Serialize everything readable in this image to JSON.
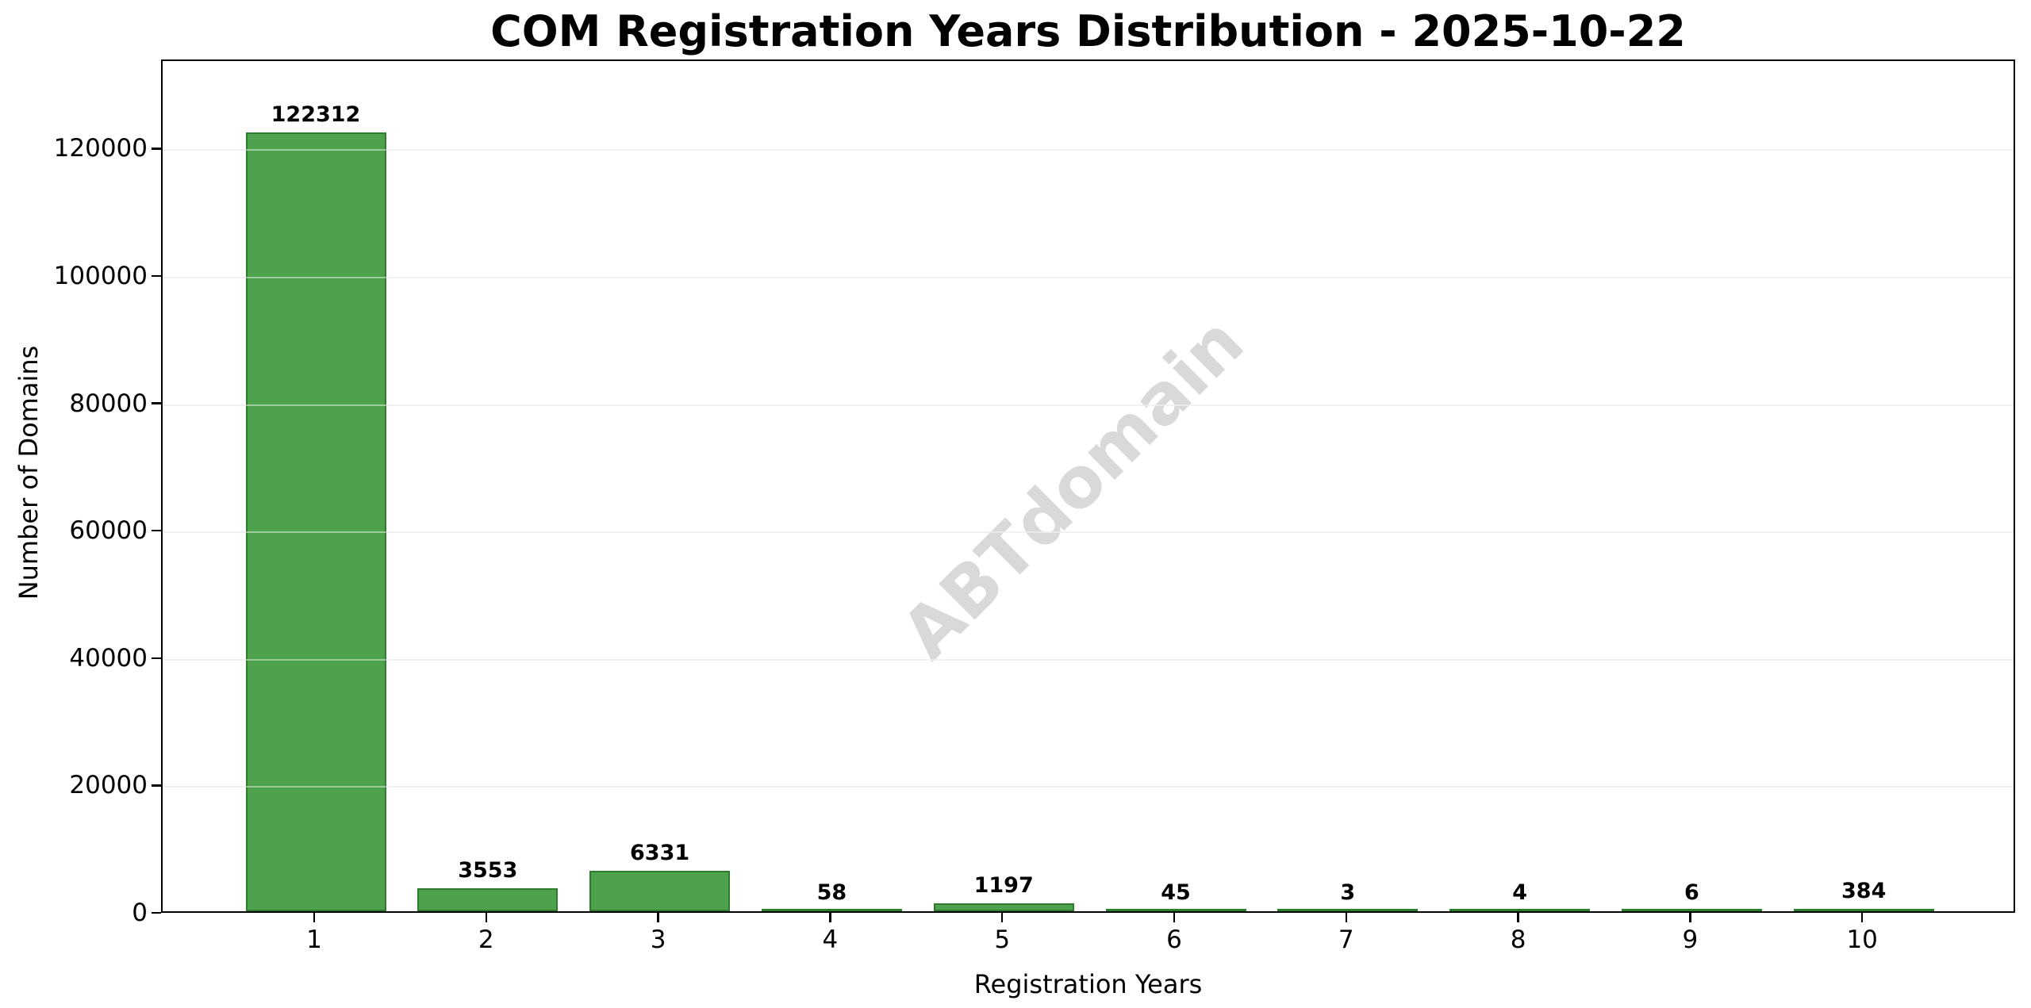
{
  "chart_data": {
    "type": "bar",
    "title": "COM Registration Years Distribution - 2025-10-22",
    "xlabel": "Registration Years",
    "ylabel": "Number of Domains",
    "categories": [
      "1",
      "2",
      "3",
      "4",
      "5",
      "6",
      "7",
      "8",
      "9",
      "10"
    ],
    "values": [
      122312,
      3553,
      6331,
      58,
      1197,
      45,
      3,
      4,
      6,
      384
    ],
    "bar_value_labels": [
      "122312",
      "3553",
      "6331",
      "58",
      "1197",
      "45",
      "3",
      "4",
      "6",
      "384"
    ],
    "ylim": [
      0,
      134000
    ],
    "yticks": [
      0,
      20000,
      40000,
      60000,
      80000,
      100000,
      120000
    ],
    "ytick_labels": [
      "0",
      "20000",
      "40000",
      "60000",
      "80000",
      "100000",
      "120000"
    ],
    "grid": "horizontal",
    "legend": "none",
    "watermark": "ABTdomain",
    "colors": {
      "bar_fill": "#4ea24e",
      "bar_edge": "#2e7d2e",
      "grid": "#e6e6e6",
      "text": "#000000",
      "watermark": "#d9d9d9",
      "background": "#ffffff"
    }
  }
}
